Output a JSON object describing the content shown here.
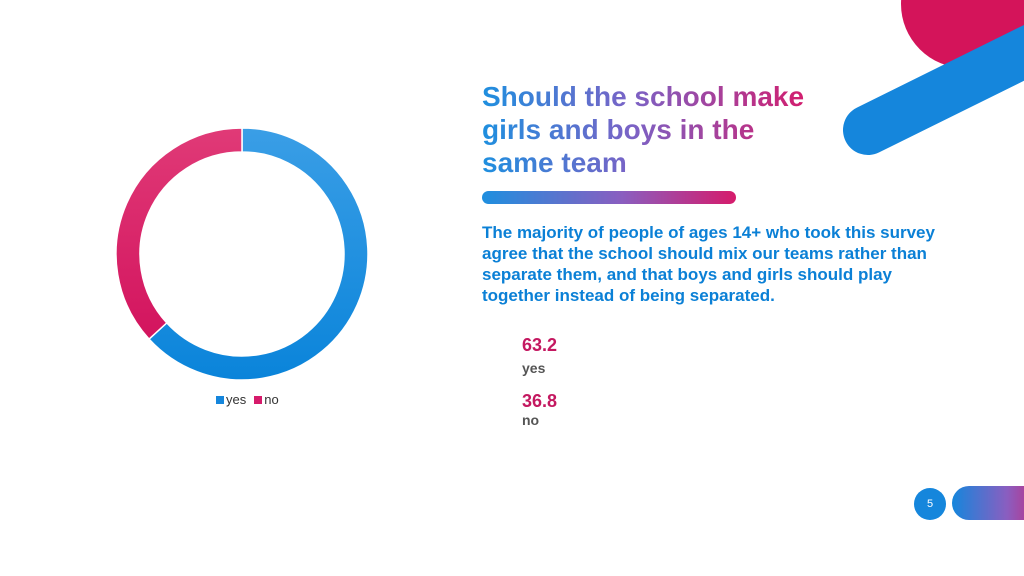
{
  "slide": {
    "title": "Should the school make girls and boys in the same team",
    "body": "The majority of people of ages 14+ who took this survey agree that the school should mix our teams rather than separate them, and that boys and girls should play together instead of being separated.",
    "page_number": "5"
  },
  "stats": [
    {
      "value": "63.2",
      "label": "yes"
    },
    {
      "value": "36.8",
      "label": "no"
    }
  ],
  "colors": {
    "yes": "#0e88dc",
    "no": "#d61b6b",
    "accent_blue": "#1586dc",
    "accent_pink": "#d4145a"
  },
  "chart_data": {
    "type": "pie",
    "variant": "donut",
    "title": "",
    "categories": [
      "yes",
      "no"
    ],
    "values": [
      63.2,
      36.8
    ],
    "legend": [
      "yes",
      "no"
    ],
    "legend_position": "bottom"
  }
}
